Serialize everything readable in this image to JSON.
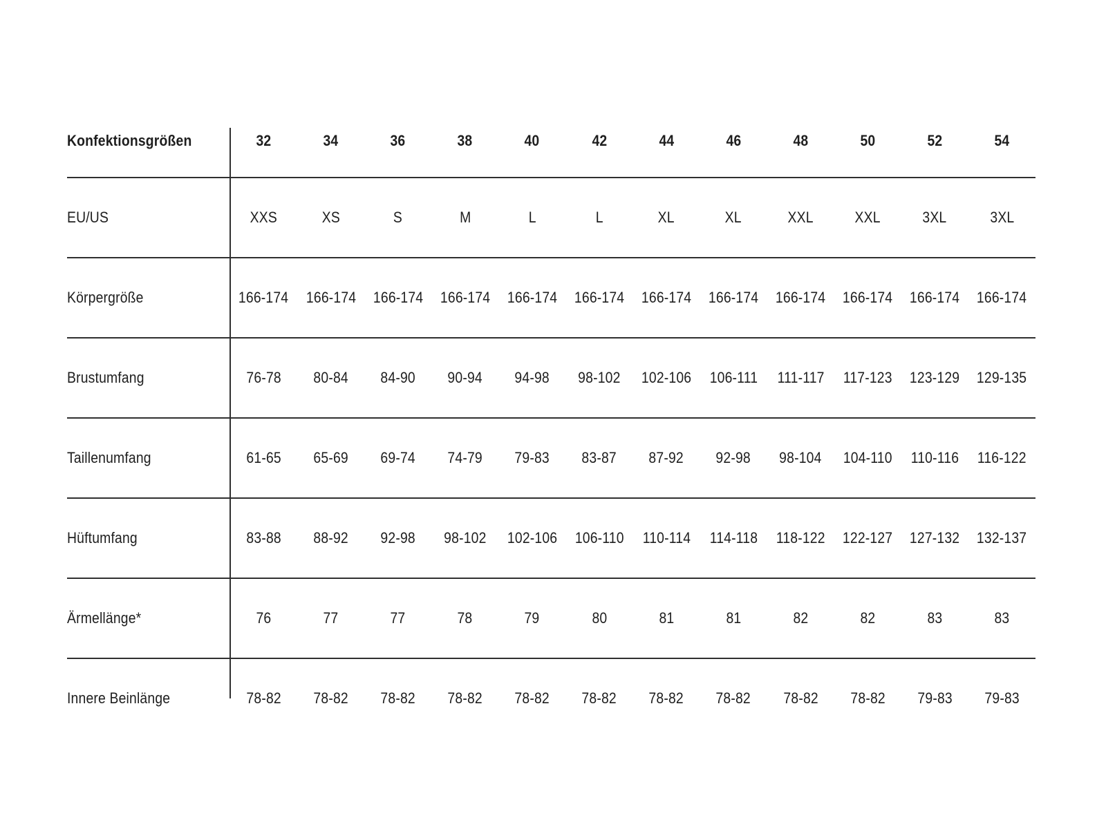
{
  "table": {
    "corner_label": "Konfektionsgrößen",
    "sizes": [
      "32",
      "34",
      "36",
      "38",
      "40",
      "42",
      "44",
      "46",
      "48",
      "50",
      "52",
      "54"
    ],
    "rows": [
      {
        "key": "eu-us",
        "label": "EU/US",
        "values": [
          "XXS",
          "XS",
          "S",
          "M",
          "L",
          "L",
          "XL",
          "XL",
          "XXL",
          "XXL",
          "3XL",
          "3XL"
        ]
      },
      {
        "key": "koerpergroesse",
        "label": "Körpergröße",
        "values": [
          "166-174",
          "166-174",
          "166-174",
          "166-174",
          "166-174",
          "166-174",
          "166-174",
          "166-174",
          "166-174",
          "166-174",
          "166-174",
          "166-174"
        ]
      },
      {
        "key": "brustumfang",
        "label": "Brustumfang",
        "values": [
          "76-78",
          "80-84",
          "84-90",
          "90-94",
          "94-98",
          "98-102",
          "102-106",
          "106-111",
          "111-117",
          "117-123",
          "123-129",
          "129-135"
        ]
      },
      {
        "key": "taillenumfang",
        "label": "Taillenumfang",
        "values": [
          "61-65",
          "65-69",
          "69-74",
          "74-79",
          "79-83",
          "83-87",
          "87-92",
          "92-98",
          "98-104",
          "104-110",
          "110-116",
          "116-122"
        ]
      },
      {
        "key": "hueftumfang",
        "label": "Hüftumfang",
        "values": [
          "83-88",
          "88-92",
          "92-98",
          "98-102",
          "102-106",
          "106-110",
          "110-114",
          "114-118",
          "118-122",
          "122-127",
          "127-132",
          "132-137"
        ]
      },
      {
        "key": "aermellaenge",
        "label": "Ärmellänge*",
        "values": [
          "76",
          "77",
          "77",
          "78",
          "79",
          "80",
          "81",
          "81",
          "82",
          "82",
          "83",
          "83"
        ]
      },
      {
        "key": "innere-beinlaenge",
        "label": "Innere Beinlänge",
        "values": [
          "78-82",
          "78-82",
          "78-82",
          "78-82",
          "78-82",
          "78-82",
          "78-82",
          "78-82",
          "78-82",
          "78-82",
          "79-83",
          "79-83"
        ]
      }
    ]
  },
  "colors": {
    "text": "#1e1e1e",
    "line": "#2f2f2f",
    "background": "#ffffff"
  }
}
